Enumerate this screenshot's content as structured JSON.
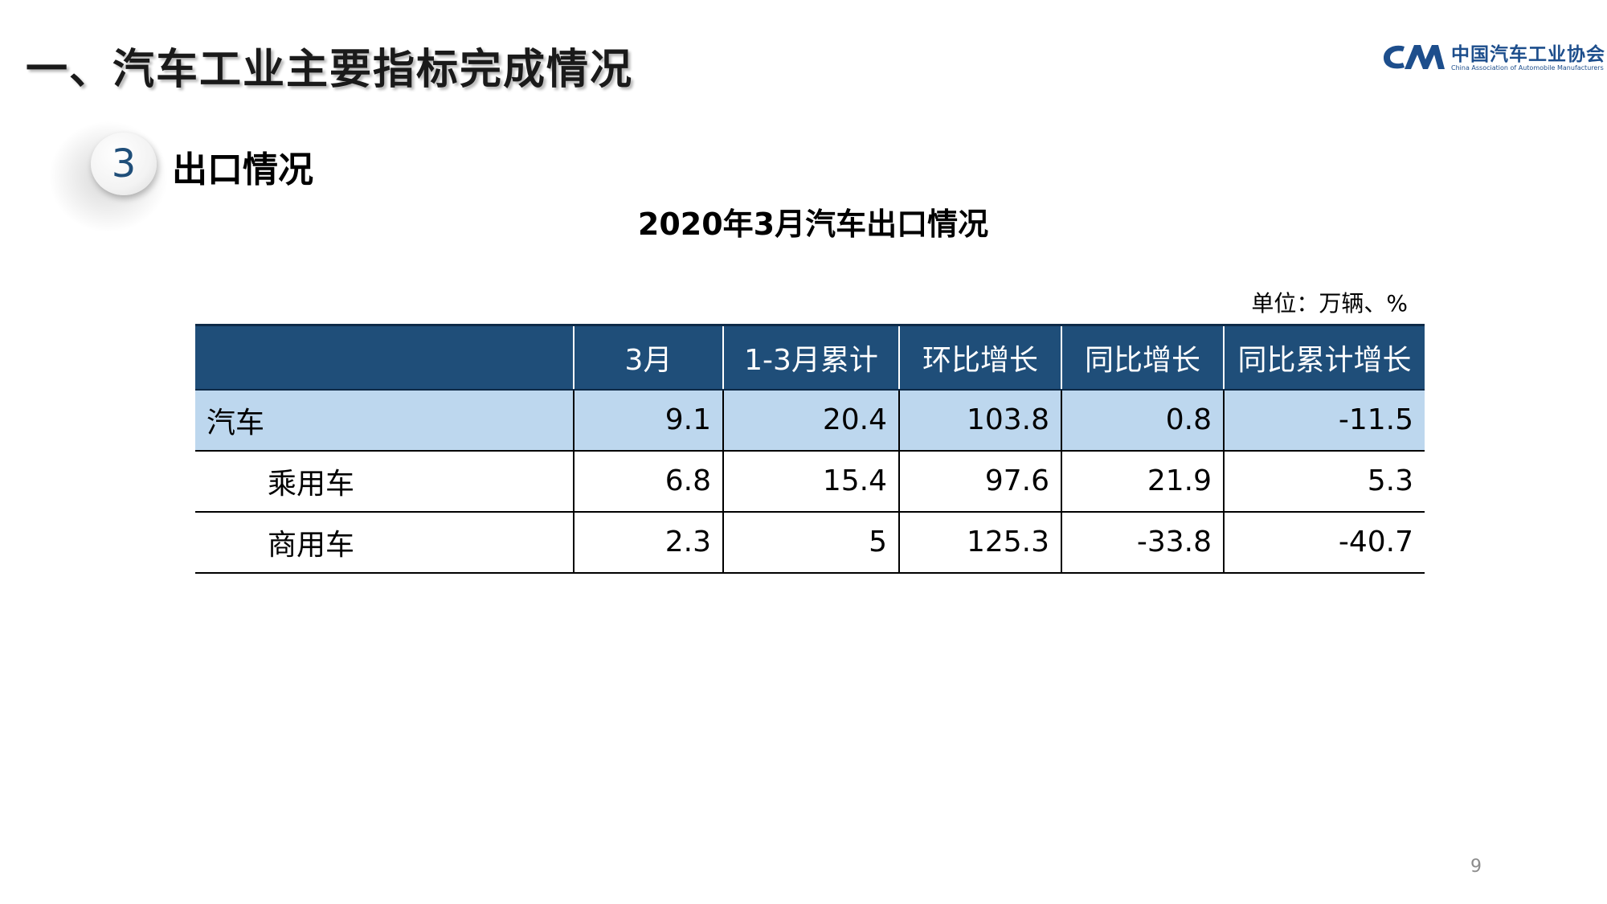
{
  "header": {
    "title": "一、汽车工业主要指标完成情况"
  },
  "logo": {
    "cn_name": "中国汽车工业协会",
    "en_name": "China Association of Automobile Manufacturers",
    "brand_color": "#1d4e8c"
  },
  "section": {
    "number": "3",
    "title": "出口情况"
  },
  "table": {
    "title": "2020年3月汽车出口情况",
    "unit": "单位：万辆、%",
    "header_color": "#1f4e79",
    "highlight_color": "#bdd7ee",
    "columns": [
      "",
      "3月",
      "1-3月累计",
      "环比增长",
      "同比增长",
      "同比累计增长"
    ],
    "rows": [
      {
        "label": "汽车",
        "values": [
          "9.1",
          "20.4",
          "103.8",
          "0.8",
          "-11.5"
        ]
      },
      {
        "label": "乘用车",
        "values": [
          "6.8",
          "15.4",
          "97.6",
          "21.9",
          "5.3"
        ]
      },
      {
        "label": "商用车",
        "values": [
          "2.3",
          "5",
          "125.3",
          "-33.8",
          "-40.7"
        ]
      }
    ]
  },
  "footer": {
    "page_number": "9"
  }
}
